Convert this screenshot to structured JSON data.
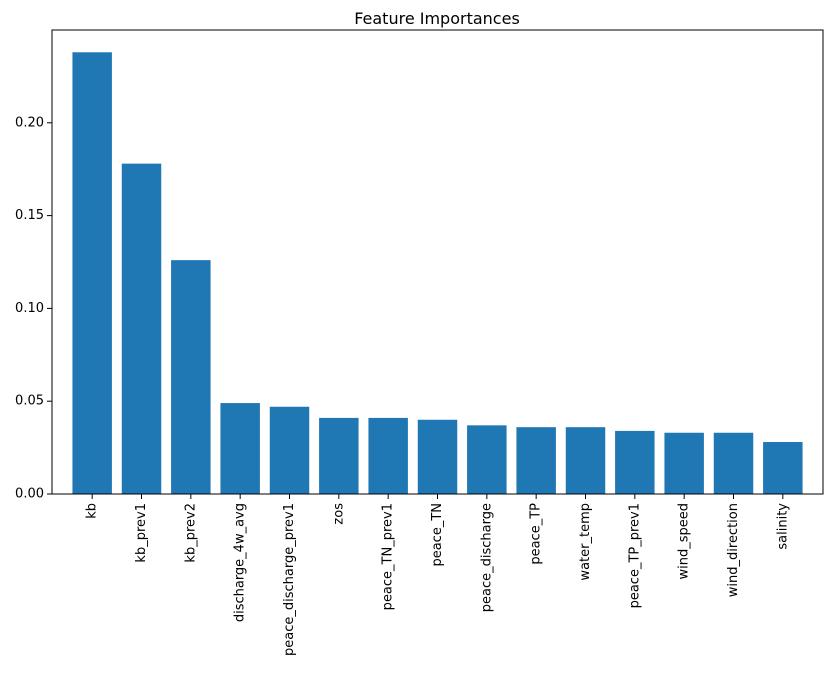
{
  "chart_data": {
    "type": "bar",
    "title": "Feature Importances",
    "xlabel": "",
    "ylabel": "",
    "categories": [
      "kb",
      "kb_prev1",
      "kb_prev2",
      "discharge_4w_avg",
      "peace_discharge_prev1",
      "zos",
      "peace_TN_prev1",
      "peace_TN",
      "peace_discharge",
      "peace_TP",
      "water_temp",
      "peace_TP_prev1",
      "wind_speed",
      "wind_direction",
      "salinity"
    ],
    "values": [
      0.238,
      0.178,
      0.126,
      0.049,
      0.047,
      0.041,
      0.041,
      0.04,
      0.037,
      0.036,
      0.036,
      0.034,
      0.033,
      0.033,
      0.028
    ],
    "ylim": [
      0,
      0.25
    ],
    "yticks": [
      "0.00",
      "0.05",
      "0.10",
      "0.15",
      "0.20"
    ],
    "ytick_values": [
      0,
      0.05,
      0.1,
      0.15,
      0.2
    ],
    "bar_color": "#1f77b4",
    "grid": false,
    "legend": "none"
  }
}
